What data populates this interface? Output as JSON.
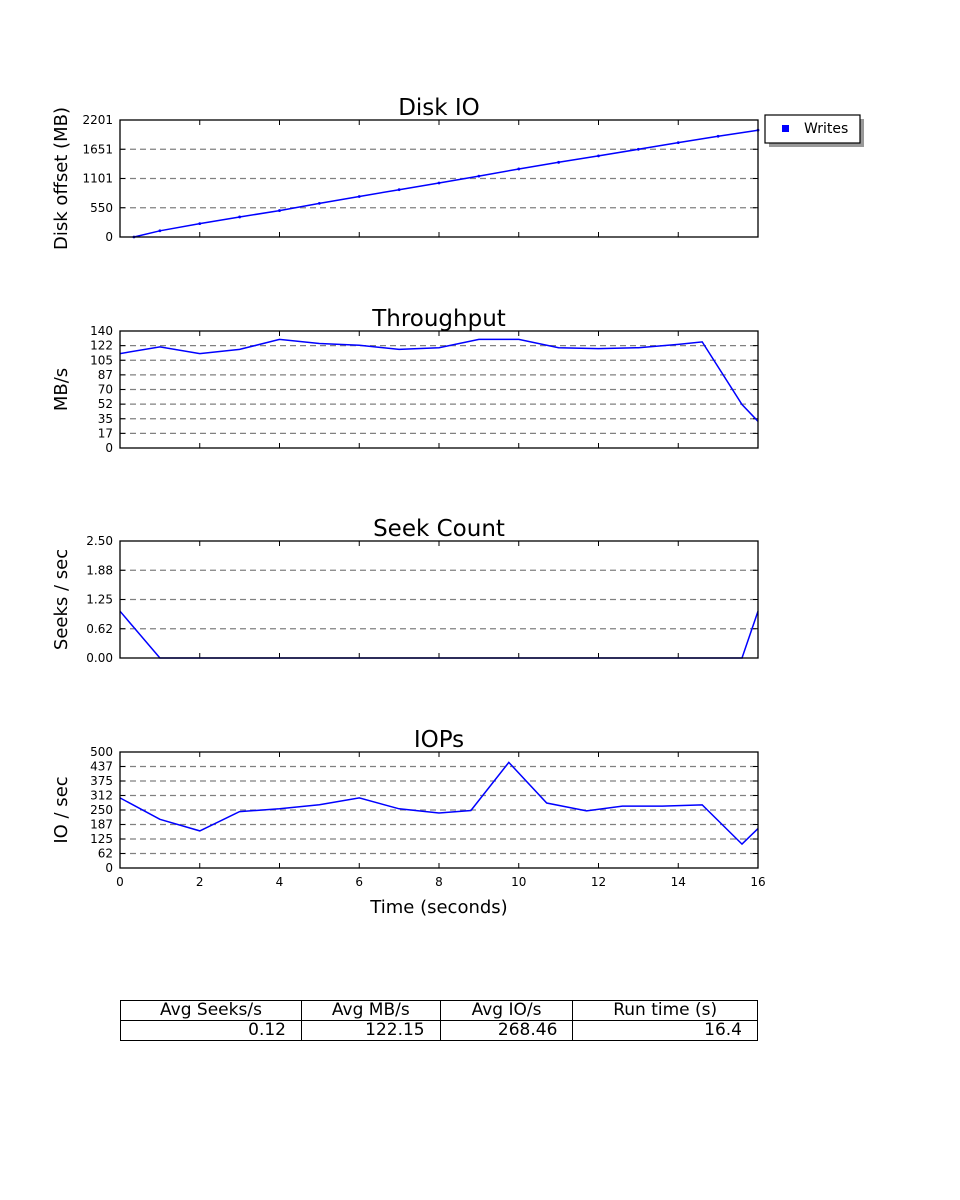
{
  "chart_data": [
    {
      "type": "scatter",
      "title": "Disk IO",
      "ylabel": "Disk offset (MB)",
      "xlim": [
        0,
        16
      ],
      "ylim": [
        0,
        2201
      ],
      "y_ticks": [
        "0",
        "550",
        "1101",
        "1651",
        "2201"
      ],
      "grid": "horizontal dashed",
      "legend": {
        "placement": "outside top-right",
        "entries": [
          "Writes"
        ]
      },
      "series": [
        {
          "name": "Writes",
          "color": "#0000ff",
          "x": [
            0.35,
            1,
            2,
            3,
            4,
            5,
            6,
            7,
            8,
            9,
            10,
            11,
            12,
            13,
            14,
            15,
            16
          ],
          "y": [
            0,
            117,
            252,
            377,
            497,
            632,
            762,
            890,
            1015,
            1145,
            1280,
            1405,
            1525,
            1650,
            1775,
            1895,
            2010
          ]
        }
      ]
    },
    {
      "type": "line",
      "title": "Throughput",
      "ylabel": "MB/s",
      "xlim": [
        0,
        16
      ],
      "ylim": [
        0,
        140
      ],
      "y_ticks": [
        "0",
        "17",
        "35",
        "52",
        "70",
        "87",
        "105",
        "122",
        "140"
      ],
      "grid": "horizontal dashed",
      "series": [
        {
          "color": "#0000ff",
          "x": [
            0,
            1,
            2,
            3,
            4,
            5,
            6,
            7,
            8,
            9,
            10,
            11,
            12,
            13,
            14,
            14.6,
            15.6,
            16
          ],
          "y": [
            113,
            121,
            113,
            118,
            130,
            125,
            123,
            118,
            120,
            130,
            130,
            120,
            119,
            120,
            124,
            127,
            52,
            32
          ]
        }
      ]
    },
    {
      "type": "line",
      "title": "Seek Count",
      "ylabel": "Seeks / sec",
      "xlim": [
        0,
        16
      ],
      "ylim": [
        0,
        2.5
      ],
      "y_ticks": [
        "0.00",
        "0.62",
        "1.25",
        "1.88",
        "2.50"
      ],
      "grid": "horizontal dashed",
      "series": [
        {
          "color": "#0000ff",
          "x": [
            0,
            1,
            2,
            3,
            4,
            5,
            6,
            7,
            8,
            9,
            10,
            11,
            12,
            13,
            14,
            15,
            15.6,
            16
          ],
          "y": [
            1,
            0,
            0,
            0,
            0,
            0,
            0,
            0,
            0,
            0,
            0,
            0,
            0,
            0,
            0,
            0,
            0,
            1
          ]
        }
      ]
    },
    {
      "type": "line",
      "title": "IOPs",
      "ylabel": "IO / sec",
      "xlabel": "Time (seconds)",
      "xlim": [
        0,
        16
      ],
      "ylim": [
        0,
        500
      ],
      "y_ticks": [
        "0",
        "62",
        "125",
        "187",
        "250",
        "312",
        "375",
        "437",
        "500"
      ],
      "x_ticks": [
        "0",
        "2",
        "4",
        "6",
        "8",
        "10",
        "12",
        "14",
        "16"
      ],
      "grid": "horizontal dashed",
      "series": [
        {
          "color": "#0000ff",
          "x": [
            0,
            1,
            2,
            3,
            4,
            5,
            6,
            7,
            8,
            8.8,
            9.75,
            10.7,
            11.7,
            12.6,
            13.6,
            14.6,
            15.6,
            16
          ],
          "y": [
            302,
            210,
            160,
            243,
            255,
            273,
            302,
            255,
            237,
            248,
            455,
            280,
            246,
            267,
            267,
            272,
            103,
            170
          ]
        }
      ]
    }
  ],
  "summary": {
    "headers": [
      "Avg Seeks/s",
      "Avg MB/s",
      "Avg IO/s",
      "Run time (s)"
    ],
    "values": [
      "0.12",
      "122.15",
      "268.46",
      "16.4"
    ]
  }
}
